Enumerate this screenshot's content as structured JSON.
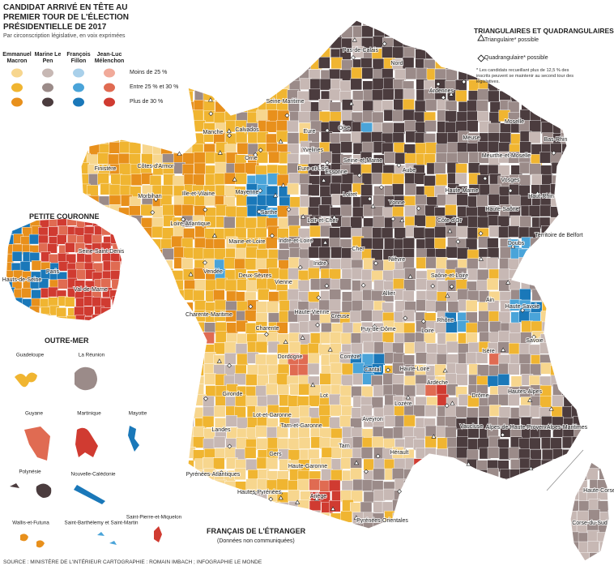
{
  "header": {
    "title": "CANDIDAT ARRIVÉ EN TÊTE AU PREMIER TOUR DE L'ÉLECTION PRÉSIDENTIELLE DE 2017",
    "subtitle": "Par circonscription législative, en voix exprimées"
  },
  "legend": {
    "candidates": [
      {
        "name": "Emmanuel Macron",
        "colors": [
          "#f7d68e",
          "#f0b531",
          "#e8901c"
        ]
      },
      {
        "name": "Marine Le Pen",
        "colors": [
          "#c7b8b4",
          "#9b8b89",
          "#4b3c3e"
        ]
      },
      {
        "name": "François Fillon",
        "colors": [
          "#a9d0ea",
          "#4aa4d9",
          "#1a78b9"
        ]
      },
      {
        "name": "Jean-Luc Mélenchon",
        "colors": [
          "#f1aa9a",
          "#e06b52",
          "#d03b31"
        ]
      }
    ],
    "levels": [
      "Moins de 25 %",
      "Entre 25 % et 30 %",
      "Plus de 30 %"
    ]
  },
  "runoff_legend": {
    "title": "TRIANGULAIRES ET QUADRANGULAIRES",
    "triangular": "Triangulaire* possible",
    "quadrangular": "Quadrangulaire* possible",
    "note": "* Les candidats recueillant plus de 12,5 % des inscrits peuvent se maintenir au second tour des législatives."
  },
  "petite_couronne": {
    "title": "PETITE COURONNE",
    "labels": [
      "Seine-Saint-Denis",
      "Paris",
      "Hauts-de-Seine",
      "Val-de-Marne"
    ]
  },
  "outre_mer": {
    "title": "OUTRE-MER",
    "labels": [
      "Guadeloupe",
      "La Réunion",
      "Guyane",
      "Martinique",
      "Mayotte",
      "Polynésie",
      "Nouvelle-Calédonie",
      "Wallis-et-Futuna",
      "Saint-Barthélemy et Saint-Martin",
      "Saint-Pierre-et-Miquelon"
    ]
  },
  "departments": [
    "Pas-de-Calais",
    "Nord",
    "Ardennes",
    "Seine-Maritime",
    "Oise",
    "Meuse",
    "Moselle",
    "Bas-Rhin",
    "Meurthe-et-Moselle",
    "Vosges",
    "Haut-Rhin",
    "Calvados",
    "Manche",
    "Eure",
    "Orne",
    "Yvelines",
    "Eure-et-Loir",
    "Essonne",
    "Seine-et-Marne",
    "Aube",
    "Haute-Marne",
    "Finistère",
    "Côtes-d'Armor",
    "Morbihan",
    "Ille-et-Vilaine",
    "Mayenne",
    "Sarthe",
    "Loiret",
    "Yonne",
    "Côte-d'Or",
    "Haute-Saône",
    "Territoire de Belfort",
    "Doubs",
    "Loire-Atlantique",
    "Maine-et-Loire",
    "Indre-et-Loire",
    "Loir-et-Cher",
    "Cher",
    "Nièvre",
    "Indre",
    "Saône-et-Loire",
    "Vendée",
    "Deux-Sèvres",
    "Vienne",
    "Allier",
    "Haute-Savoie",
    "Rhône",
    "Ain",
    "Charente-Maritime",
    "Charente",
    "Haute-Vienne",
    "Creuse",
    "Puy-de-Dôme",
    "Loire",
    "Savoie",
    "Isère",
    "Dordogne",
    "Corrèze",
    "Cantal",
    "Haute-Loire",
    "Gironde",
    "Lot",
    "Lozère",
    "Ardèche",
    "Drôme",
    "Hautes-Alpes",
    "Lot-et-Garonne",
    "Aveyron",
    "Landes",
    "Tarn-et-Garonne",
    "Vaucluse",
    "Alpes-de-Haute-Provence",
    "Alpes-Maritimes",
    "Gers",
    "Tarn",
    "Hérault",
    "Pyrénées-Atlantiques",
    "Hautes-Pyrénées",
    "Haute-Garonne",
    "Ariège",
    "Pyrénées-Orientales",
    "Haute-Corse",
    "Corse-du-Sud"
  ],
  "abroad": {
    "title": "FRANÇAIS DE L'ÉTRANGER",
    "note": "(Données non communiquées)"
  },
  "source": "SOURCE : MINISTÈRE DE L'INTÉRIEUR   CARTOGRAPHIE : ROMAIN IMBACH ; INFOGRAPHIE LE MONDE"
}
